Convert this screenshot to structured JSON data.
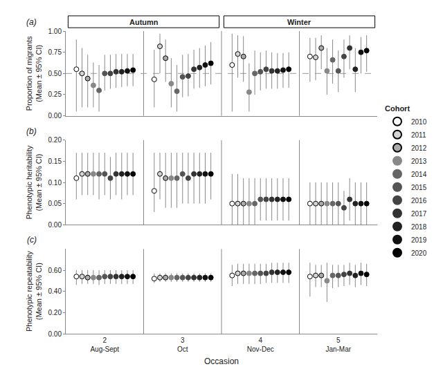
{
  "chart_data": [
    {
      "type": "scatter",
      "title": "(a)",
      "ylabel": "Proportion of migrants\n(Mean ± 95% CI)",
      "categories": [
        "2",
        "3",
        "4",
        "5"
      ],
      "tick_labels": "y",
      "grid": false,
      "marker": "circle",
      "ylim": [
        0.0,
        1.0
      ],
      "yticks": [
        {
          "value": 0.0,
          "label": "0.00"
        },
        {
          "value": 0.25,
          "label": "0.25"
        },
        {
          "value": 0.5,
          "label": "0.50"
        },
        {
          "value": 0.75,
          "label": "0.75"
        },
        {
          "value": 1.0,
          "label": "1.00"
        }
      ],
      "hline": 0.5,
      "category_groups": [
        {
          "text": "Autumn",
          "categories": [
            "2",
            "3"
          ]
        },
        {
          "text": "Winter",
          "categories": [
            "4",
            "5"
          ]
        }
      ],
      "series": [
        {
          "name": "2010",
          "color": "#ffffff",
          "values": [
            0.55,
            0.43,
            0.6,
            0.7
          ],
          "ci_lower": [
            0.05,
            0.1,
            0.05,
            0.4
          ],
          "ci_upper": [
            0.9,
            0.78,
            0.97,
            0.92
          ]
        },
        {
          "name": "2011",
          "color": "#d4d4d4",
          "values": [
            0.5,
            0.82,
            0.73,
            0.69
          ],
          "ci_lower": [
            0.1,
            0.5,
            0.45,
            0.42
          ],
          "ci_upper": [
            0.8,
            0.97,
            0.95,
            0.92
          ]
        },
        {
          "name": "2012",
          "color": "#aaaaaa",
          "values": [
            0.44,
            0.68,
            0.7,
            0.8
          ],
          "ci_lower": [
            0.1,
            0.4,
            0.4,
            0.55
          ],
          "ci_upper": [
            0.72,
            0.9,
            0.94,
            0.95
          ]
        },
        {
          "name": "2013",
          "color": "#888888",
          "values": [
            0.36,
            0.38,
            0.28,
            0.53
          ],
          "ci_lower": [
            0.1,
            0.1,
            0.05,
            0.25
          ],
          "ci_upper": [
            0.63,
            0.68,
            0.62,
            0.8
          ]
        },
        {
          "name": "2014",
          "color": "#666666",
          "values": [
            0.3,
            0.29,
            0.5,
            0.66
          ],
          "ci_lower": [
            0.05,
            0.05,
            0.25,
            0.38
          ],
          "ci_upper": [
            0.6,
            0.6,
            0.77,
            0.9
          ]
        },
        {
          "name": "2015",
          "color": "#555555",
          "values": [
            0.5,
            0.46,
            0.52,
            0.53
          ],
          "ci_lower": [
            0.3,
            0.22,
            0.3,
            0.28
          ],
          "ci_upper": [
            0.72,
            0.72,
            0.75,
            0.77
          ]
        },
        {
          "name": "2016",
          "color": "#444444",
          "values": [
            0.5,
            0.47,
            0.55,
            0.7
          ],
          "ci_lower": [
            0.32,
            0.23,
            0.32,
            0.45
          ],
          "ci_upper": [
            0.72,
            0.73,
            0.77,
            0.9
          ]
        },
        {
          "name": "2017",
          "color": "#333333",
          "values": [
            0.52,
            0.55,
            0.53,
            0.8
          ],
          "ci_lower": [
            0.33,
            0.32,
            0.32,
            0.55
          ],
          "ci_upper": [
            0.73,
            0.78,
            0.75,
            0.95
          ]
        },
        {
          "name": "2018",
          "color": "#222222",
          "values": [
            0.52,
            0.57,
            0.53,
            0.55
          ],
          "ci_lower": [
            0.34,
            0.33,
            0.32,
            0.28
          ],
          "ci_upper": [
            0.73,
            0.8,
            0.74,
            0.8
          ]
        },
        {
          "name": "2019",
          "color": "#111111",
          "values": [
            0.53,
            0.6,
            0.54,
            0.75
          ],
          "ci_lower": [
            0.35,
            0.35,
            0.33,
            0.5
          ],
          "ci_upper": [
            0.73,
            0.83,
            0.74,
            0.93
          ]
        },
        {
          "name": "2020",
          "color": "#000000",
          "values": [
            0.54,
            0.62,
            0.55,
            0.77
          ],
          "ci_lower": [
            0.35,
            0.37,
            0.33,
            0.52
          ],
          "ci_upper": [
            0.73,
            0.87,
            0.75,
            0.95
          ]
        }
      ]
    },
    {
      "type": "scatter",
      "title": "(b)",
      "ylabel": "Phenotypic heritability\n(Mean ± 95% CI)",
      "categories": [
        "2",
        "3",
        "4",
        "5"
      ],
      "tick_labels": "y",
      "grid": false,
      "marker": "circle",
      "legend": "right",
      "legend_title": "Cohort",
      "ylim": [
        0.0,
        0.2
      ],
      "yticks": [
        {
          "value": 0.0,
          "label": "0.00"
        },
        {
          "value": 0.05,
          "label": "0.05"
        },
        {
          "value": 0.1,
          "label": "0.10"
        },
        {
          "value": 0.15,
          "label": "0.15"
        },
        {
          "value": 0.2,
          "label": "0.20"
        }
      ],
      "series": [
        {
          "name": "2010",
          "color": "#ffffff",
          "values": [
            0.11,
            0.08,
            0.05,
            0.05
          ],
          "ci_lower": [
            0.06,
            0.03,
            0.0,
            0.0
          ],
          "ci_upper": [
            0.17,
            0.17,
            0.12,
            0.1
          ]
        },
        {
          "name": "2011",
          "color": "#d4d4d4",
          "values": [
            0.12,
            0.12,
            0.05,
            0.05
          ],
          "ci_lower": [
            0.07,
            0.06,
            0.0,
            0.0
          ],
          "ci_upper": [
            0.17,
            0.17,
            0.12,
            0.1
          ]
        },
        {
          "name": "2012",
          "color": "#aaaaaa",
          "values": [
            0.12,
            0.11,
            0.05,
            0.05
          ],
          "ci_lower": [
            0.07,
            0.04,
            0.0,
            0.0
          ],
          "ci_upper": [
            0.17,
            0.17,
            0.11,
            0.1
          ]
        },
        {
          "name": "2013",
          "color": "#888888",
          "values": [
            0.12,
            0.11,
            0.05,
            0.05
          ],
          "ci_lower": [
            0.07,
            0.04,
            0.0,
            0.0
          ],
          "ci_upper": [
            0.17,
            0.17,
            0.11,
            0.1
          ]
        },
        {
          "name": "2014",
          "color": "#666666",
          "values": [
            0.12,
            0.11,
            0.05,
            0.05
          ],
          "ci_lower": [
            0.06,
            0.04,
            0.0,
            0.0
          ],
          "ci_upper": [
            0.17,
            0.17,
            0.11,
            0.1
          ]
        },
        {
          "name": "2015",
          "color": "#555555",
          "values": [
            0.12,
            0.12,
            0.06,
            0.05
          ],
          "ci_lower": [
            0.07,
            0.05,
            0.01,
            0.0
          ],
          "ci_upper": [
            0.17,
            0.17,
            0.11,
            0.1
          ]
        },
        {
          "name": "2016",
          "color": "#444444",
          "values": [
            0.11,
            0.11,
            0.06,
            0.04
          ],
          "ci_lower": [
            0.06,
            0.05,
            0.01,
            0.0
          ],
          "ci_upper": [
            0.16,
            0.17,
            0.11,
            0.08
          ]
        },
        {
          "name": "2017",
          "color": "#333333",
          "values": [
            0.12,
            0.12,
            0.06,
            0.06
          ],
          "ci_lower": [
            0.07,
            0.05,
            0.01,
            0.01
          ],
          "ci_upper": [
            0.17,
            0.17,
            0.11,
            0.11
          ]
        },
        {
          "name": "2018",
          "color": "#222222",
          "values": [
            0.12,
            0.12,
            0.06,
            0.05
          ],
          "ci_lower": [
            0.06,
            0.05,
            0.01,
            0.0
          ],
          "ci_upper": [
            0.17,
            0.17,
            0.11,
            0.1
          ]
        },
        {
          "name": "2019",
          "color": "#111111",
          "values": [
            0.12,
            0.12,
            0.06,
            0.05
          ],
          "ci_lower": [
            0.07,
            0.05,
            0.01,
            0.0
          ],
          "ci_upper": [
            0.17,
            0.17,
            0.11,
            0.1
          ]
        },
        {
          "name": "2020",
          "color": "#000000",
          "values": [
            0.12,
            0.12,
            0.06,
            0.05
          ],
          "ci_lower": [
            0.07,
            0.06,
            0.01,
            0.0
          ],
          "ci_upper": [
            0.17,
            0.17,
            0.11,
            0.1
          ]
        }
      ]
    },
    {
      "type": "scatter",
      "title": "(c)",
      "ylabel": "Phenotypic repeatability\n(Mean ± 95% CI)",
      "xlabel": "Occasion",
      "categories": [
        "2",
        "3",
        "4",
        "5"
      ],
      "grid": false,
      "marker": "circle",
      "xticks": [
        {
          "value": "2",
          "label": "2\nAug-Sept"
        },
        {
          "value": "3",
          "label": "3\nOct"
        },
        {
          "value": "4",
          "label": "4\nNov-Dec"
        },
        {
          "value": "5",
          "label": "5\nJan-Mar"
        }
      ],
      "ylim": [
        0.0,
        0.8
      ],
      "yticks": [
        {
          "value": 0.0,
          "label": "0.00"
        },
        {
          "value": 0.2,
          "label": "0.20"
        },
        {
          "value": 0.4,
          "label": "0.40"
        },
        {
          "value": 0.6,
          "label": "0.60"
        }
      ],
      "series": [
        {
          "name": "2010",
          "color": "#ffffff",
          "values": [
            0.54,
            0.52,
            0.55,
            0.54
          ],
          "ci_lower": [
            0.46,
            0.48,
            0.45,
            0.35
          ],
          "ci_upper": [
            0.6,
            0.57,
            0.65,
            0.67
          ]
        },
        {
          "name": "2011",
          "color": "#d4d4d4",
          "values": [
            0.54,
            0.53,
            0.57,
            0.55
          ],
          "ci_lower": [
            0.47,
            0.49,
            0.47,
            0.44
          ],
          "ci_upper": [
            0.6,
            0.57,
            0.66,
            0.65
          ]
        },
        {
          "name": "2012",
          "color": "#aaaaaa",
          "values": [
            0.53,
            0.53,
            0.57,
            0.55
          ],
          "ci_lower": [
            0.47,
            0.49,
            0.47,
            0.44
          ],
          "ci_upper": [
            0.6,
            0.57,
            0.66,
            0.65
          ]
        },
        {
          "name": "2013",
          "color": "#888888",
          "values": [
            0.53,
            0.53,
            0.57,
            0.5
          ],
          "ci_lower": [
            0.47,
            0.49,
            0.47,
            0.3
          ],
          "ci_upper": [
            0.6,
            0.57,
            0.66,
            0.67
          ]
        },
        {
          "name": "2014",
          "color": "#666666",
          "values": [
            0.53,
            0.53,
            0.57,
            0.55
          ],
          "ci_lower": [
            0.46,
            0.49,
            0.47,
            0.43
          ],
          "ci_upper": [
            0.6,
            0.57,
            0.66,
            0.65
          ]
        },
        {
          "name": "2015",
          "color": "#555555",
          "values": [
            0.54,
            0.53,
            0.57,
            0.55
          ],
          "ci_lower": [
            0.47,
            0.49,
            0.47,
            0.44
          ],
          "ci_upper": [
            0.6,
            0.57,
            0.66,
            0.65
          ]
        },
        {
          "name": "2016",
          "color": "#444444",
          "values": [
            0.54,
            0.53,
            0.57,
            0.56
          ],
          "ci_lower": [
            0.47,
            0.49,
            0.48,
            0.45
          ],
          "ci_upper": [
            0.6,
            0.57,
            0.66,
            0.65
          ]
        },
        {
          "name": "2017",
          "color": "#333333",
          "values": [
            0.54,
            0.53,
            0.58,
            0.57
          ],
          "ci_lower": [
            0.47,
            0.49,
            0.48,
            0.46
          ],
          "ci_upper": [
            0.6,
            0.57,
            0.67,
            0.67
          ]
        },
        {
          "name": "2018",
          "color": "#222222",
          "values": [
            0.54,
            0.53,
            0.58,
            0.55
          ],
          "ci_lower": [
            0.47,
            0.49,
            0.48,
            0.44
          ],
          "ci_upper": [
            0.6,
            0.57,
            0.67,
            0.65
          ]
        },
        {
          "name": "2019",
          "color": "#111111",
          "values": [
            0.54,
            0.53,
            0.58,
            0.57
          ],
          "ci_lower": [
            0.47,
            0.49,
            0.48,
            0.46
          ],
          "ci_upper": [
            0.6,
            0.57,
            0.67,
            0.67
          ]
        },
        {
          "name": "2020",
          "color": "#000000",
          "values": [
            0.54,
            0.53,
            0.58,
            0.56
          ],
          "ci_lower": [
            0.47,
            0.49,
            0.48,
            0.45
          ],
          "ci_upper": [
            0.6,
            0.57,
            0.67,
            0.66
          ]
        }
      ]
    }
  ]
}
